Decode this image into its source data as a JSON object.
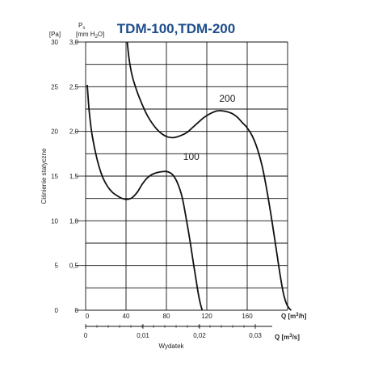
{
  "chart_data": {
    "type": "line",
    "title": "TDM-100,TDM-200",
    "ylabel": "Ciśnienie statyczne",
    "xlabel": "Wydatek",
    "y_unit_pa": "[Pa]",
    "y_unit_mmh2o": {
      "sym": "P",
      "sub": "s",
      "unit_pre": "[mm H",
      "unit_sub": "2",
      "unit_post": "O]"
    },
    "x_unit_m3h": {
      "pre": "Q [m",
      "sup": "3",
      "post": "/h]"
    },
    "x_unit_m3s": {
      "pre": "Q [m",
      "sup": "3",
      "post": "/s]"
    },
    "ylim_pa": [
      0,
      30
    ],
    "xlim_m3h": [
      0,
      240
    ],
    "pa_ticks": [
      "0",
      "5",
      "10",
      "15",
      "20",
      "25",
      "30"
    ],
    "mmh2o_ticks": [
      "0",
      "0,5",
      "1,0",
      "1,5",
      "2,0",
      "2,5",
      "3,0"
    ],
    "m3h_ticks": [
      "0",
      "40",
      "80",
      "120",
      "160"
    ],
    "m3s_ticks": [
      "0",
      "0,01",
      "0,02",
      "0,03"
    ],
    "grid": true,
    "series": [
      {
        "name": "100",
        "x": [
          0,
          2,
          5,
          10,
          15,
          20,
          25,
          30,
          35,
          40,
          45,
          50,
          55,
          60,
          65,
          70,
          75,
          80,
          85,
          90,
          95,
          100,
          103,
          106,
          109,
          111,
          113,
          115
        ],
        "y": [
          25.2,
          22.2,
          19.5,
          16.8,
          15.0,
          13.9,
          13.2,
          12.8,
          12.5,
          12.4,
          12.6,
          13.2,
          14.1,
          14.8,
          15.2,
          15.4,
          15.5,
          15.5,
          15.2,
          14.3,
          12.6,
          9.6,
          7.6,
          5.4,
          3.3,
          1.9,
          0.8,
          0
        ]
      },
      {
        "name": "200",
        "x": [
          40,
          42,
          45,
          50,
          55,
          60,
          65,
          70,
          75,
          80,
          85,
          90,
          95,
          100,
          105,
          110,
          115,
          120,
          125,
          130,
          135,
          140,
          145,
          150,
          155,
          160,
          165,
          170,
          175,
          180,
          185,
          190,
          193,
          196,
          199,
          202,
          204
        ],
        "y": [
          30.0,
          28.0,
          26.2,
          24.4,
          23.0,
          21.8,
          20.9,
          20.2,
          19.7,
          19.4,
          19.3,
          19.4,
          19.6,
          19.9,
          20.4,
          20.9,
          21.4,
          21.8,
          22.1,
          22.3,
          22.3,
          22.2,
          22.0,
          21.6,
          21.0,
          20.4,
          19.5,
          18.1,
          16.1,
          13.2,
          9.8,
          6.1,
          3.9,
          2.0,
          0.8,
          0.2,
          0
        ]
      }
    ],
    "annotations": [
      "100",
      "200"
    ]
  }
}
